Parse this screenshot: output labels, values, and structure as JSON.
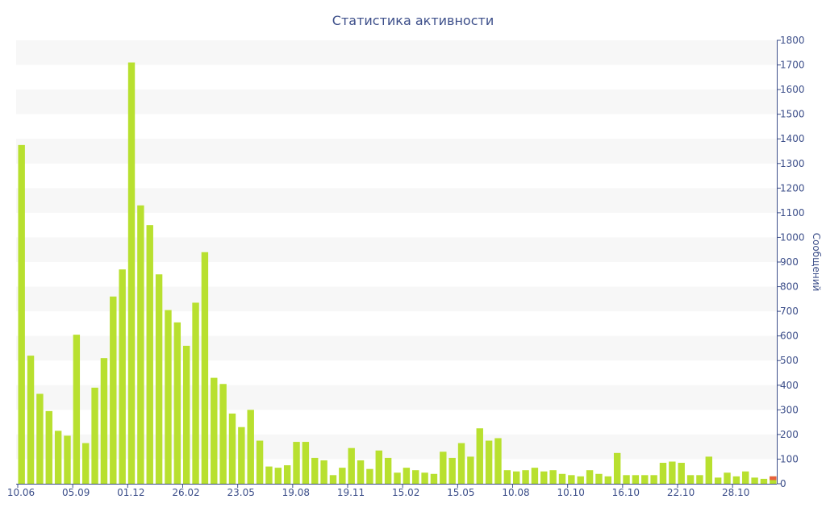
{
  "chart_data": {
    "type": "bar",
    "title": "Статистика активности",
    "ylabel": "Сообщений",
    "xlabel": "",
    "ylim": [
      0,
      1800
    ],
    "y_ticks": [
      0,
      100,
      200,
      300,
      400,
      500,
      600,
      700,
      800,
      900,
      1000,
      1100,
      1200,
      1300,
      1400,
      1500,
      1600,
      1700,
      1800
    ],
    "x_tick_labels": [
      {
        "index": 0,
        "label": "10.06"
      },
      {
        "index": 6,
        "label": "05.09"
      },
      {
        "index": 12,
        "label": "01.12"
      },
      {
        "index": 18,
        "label": "26.02"
      },
      {
        "index": 24,
        "label": "23.05"
      },
      {
        "index": 30,
        "label": "19.08"
      },
      {
        "index": 36,
        "label": "19.11"
      },
      {
        "index": 42,
        "label": "15.02"
      },
      {
        "index": 48,
        "label": "15.05"
      },
      {
        "index": 54,
        "label": "10.08"
      },
      {
        "index": 60,
        "label": "10.10"
      },
      {
        "index": 66,
        "label": "16.10"
      },
      {
        "index": 72,
        "label": "22.10"
      },
      {
        "index": 78,
        "label": "28.10"
      }
    ],
    "values": [
      1375,
      520,
      365,
      295,
      215,
      195,
      605,
      165,
      390,
      510,
      760,
      870,
      1710,
      1130,
      1050,
      850,
      705,
      655,
      560,
      735,
      940,
      430,
      405,
      285,
      230,
      300,
      175,
      70,
      65,
      75,
      170,
      170,
      105,
      95,
      35,
      65,
      145,
      95,
      60,
      135,
      105,
      45,
      65,
      55,
      45,
      40,
      130,
      105,
      165,
      110,
      225,
      175,
      185,
      55,
      50,
      55,
      65,
      50,
      55,
      40,
      35,
      30,
      55,
      40,
      30,
      125,
      35,
      35,
      35,
      35,
      85,
      90,
      85,
      35,
      35,
      110,
      25,
      45,
      30,
      50,
      25,
      20,
      30
    ],
    "highlight": {
      "index": 82,
      "value": 30,
      "color": "#e8603c"
    },
    "grid": true,
    "colors": {
      "bar": "#b8e02f",
      "band": "#f7f7f7",
      "axis": "#3d4f8a",
      "text": "#3d4f8a"
    }
  }
}
